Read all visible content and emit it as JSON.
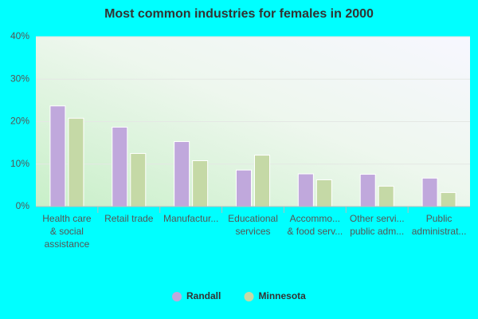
{
  "chart_data": {
    "type": "bar",
    "title": "Most common industries for females in 2000",
    "categories": [
      [
        "Health care",
        "& social",
        "assistance"
      ],
      [
        "Retail trade"
      ],
      [
        "Manufactur..."
      ],
      [
        "Educational",
        "services"
      ],
      [
        "Accommo...",
        "& food serv..."
      ],
      [
        "Other servi...",
        "public adm..."
      ],
      [
        "Public",
        "administrat..."
      ]
    ],
    "series": [
      {
        "name": "Randall",
        "color": "#c0a8dc",
        "values": [
          23.7,
          18.7,
          15.3,
          8.6,
          7.7,
          7.6,
          6.7
        ]
      },
      {
        "name": "Minnesota",
        "color": "#c5d9a6",
        "values": [
          20.8,
          12.5,
          10.8,
          12.1,
          6.3,
          4.8,
          3.3
        ]
      }
    ],
    "ylim": [
      0,
      40
    ],
    "yticks": [
      {
        "value": 0,
        "label": "0%"
      },
      {
        "value": 10,
        "label": "10%"
      },
      {
        "value": 20,
        "label": "20%"
      },
      {
        "value": 30,
        "label": "30%"
      },
      {
        "value": 40,
        "label": "40%"
      }
    ],
    "grid": true,
    "legend": "bottom"
  }
}
